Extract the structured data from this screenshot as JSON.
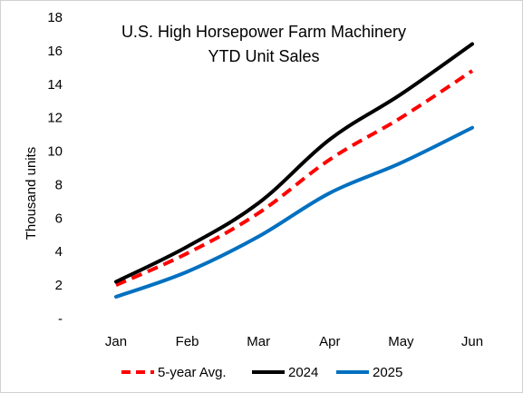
{
  "chart_data": {
    "type": "line",
    "title": [
      "U.S. High Horsepower  Farm Machinery",
      "YTD Unit Sales"
    ],
    "xlabel": "",
    "ylabel": "Thousand units",
    "categories": [
      "Jan",
      "Feb",
      "Mar",
      "Apr",
      "May",
      "Jun"
    ],
    "ylim": [
      0,
      18
    ],
    "yticks": [
      0,
      2,
      4,
      6,
      8,
      10,
      12,
      14,
      16,
      18
    ],
    "ytick_labels": [
      "-",
      "2",
      "4",
      "6",
      "8",
      "10",
      "12",
      "14",
      "16",
      "18"
    ],
    "grid": false,
    "legend_position": "bottom",
    "series": [
      {
        "name": "5-year Avg.",
        "color": "#ff0000",
        "dashed": true,
        "values": [
          2.0,
          3.9,
          6.3,
          9.5,
          12.0,
          14.8
        ]
      },
      {
        "name": "2024",
        "color": "#000000",
        "dashed": false,
        "values": [
          2.2,
          4.3,
          6.9,
          10.7,
          13.4,
          16.4
        ]
      },
      {
        "name": "2025",
        "color": "#0070c0",
        "dashed": false,
        "values": [
          1.3,
          2.8,
          4.9,
          7.5,
          9.3,
          11.4
        ]
      }
    ]
  }
}
